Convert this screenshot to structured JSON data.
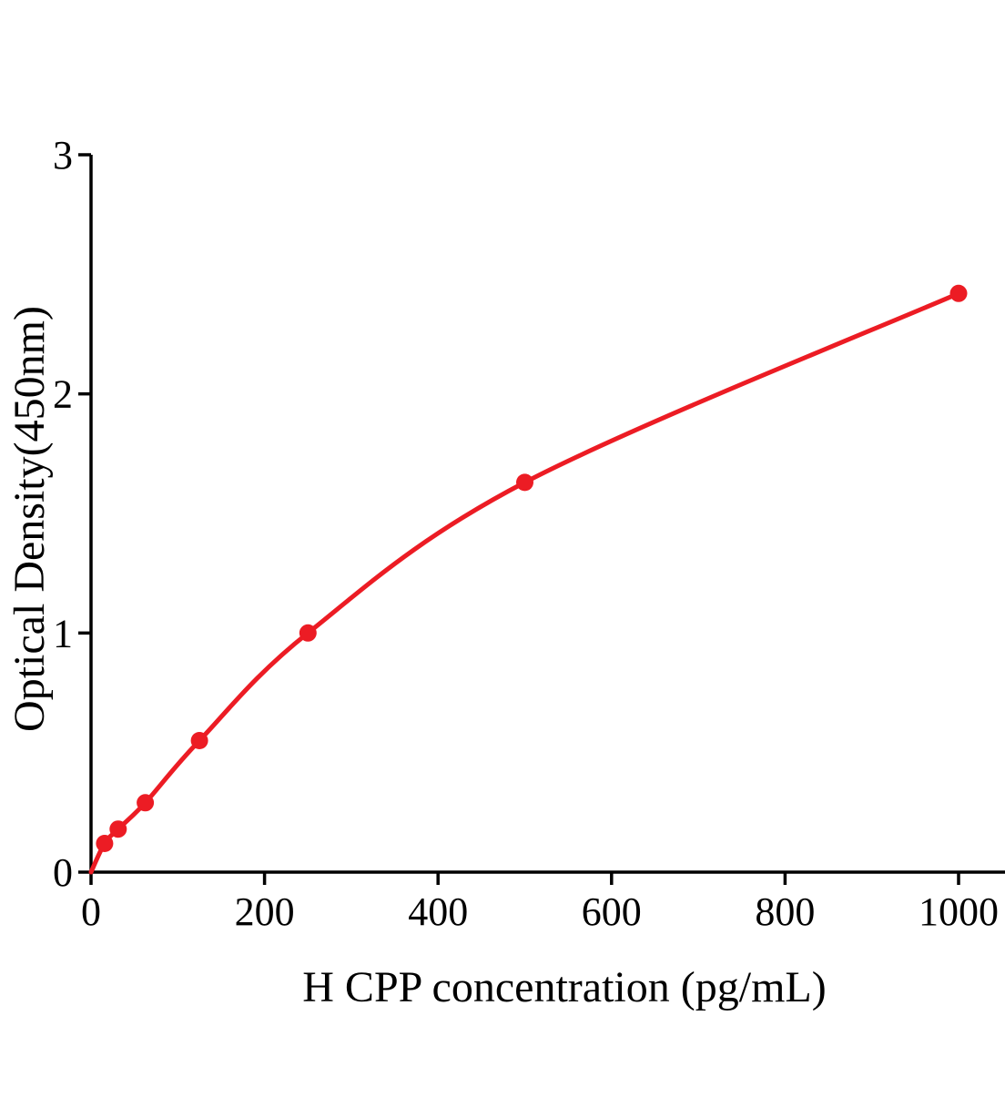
{
  "chart_data": {
    "type": "line",
    "title": "",
    "xlabel": "H CPP concentration (pg/mL)",
    "ylabel": "Optical Density(450nm)",
    "curve": {
      "x": [
        0,
        15.6,
        31.25,
        62.5,
        125,
        250,
        500,
        1000
      ],
      "y": [
        0,
        0.12,
        0.18,
        0.29,
        0.55,
        1.0,
        1.63,
        2.42
      ]
    },
    "points": {
      "x": [
        15.6,
        31.25,
        62.5,
        125,
        250,
        500,
        1000
      ],
      "y": [
        0.12,
        0.18,
        0.29,
        0.55,
        1.0,
        1.63,
        2.42
      ]
    },
    "xticks": {
      "values": [
        0,
        200,
        400,
        600,
        800,
        1000
      ],
      "labels": [
        "0",
        "200",
        "400",
        "600",
        "800",
        "1000"
      ]
    },
    "yticks": {
      "values": [
        0,
        1,
        2,
        3
      ],
      "labels": [
        "0",
        "1",
        "2",
        "3"
      ]
    },
    "xlim": [
      0,
      1055
    ],
    "ylim": [
      0,
      3
    ],
    "grid": false,
    "legend": null,
    "colors": {
      "curve": "#ec1c24",
      "axis": "#000000",
      "text": "#000000",
      "background": "#ffffff"
    }
  }
}
